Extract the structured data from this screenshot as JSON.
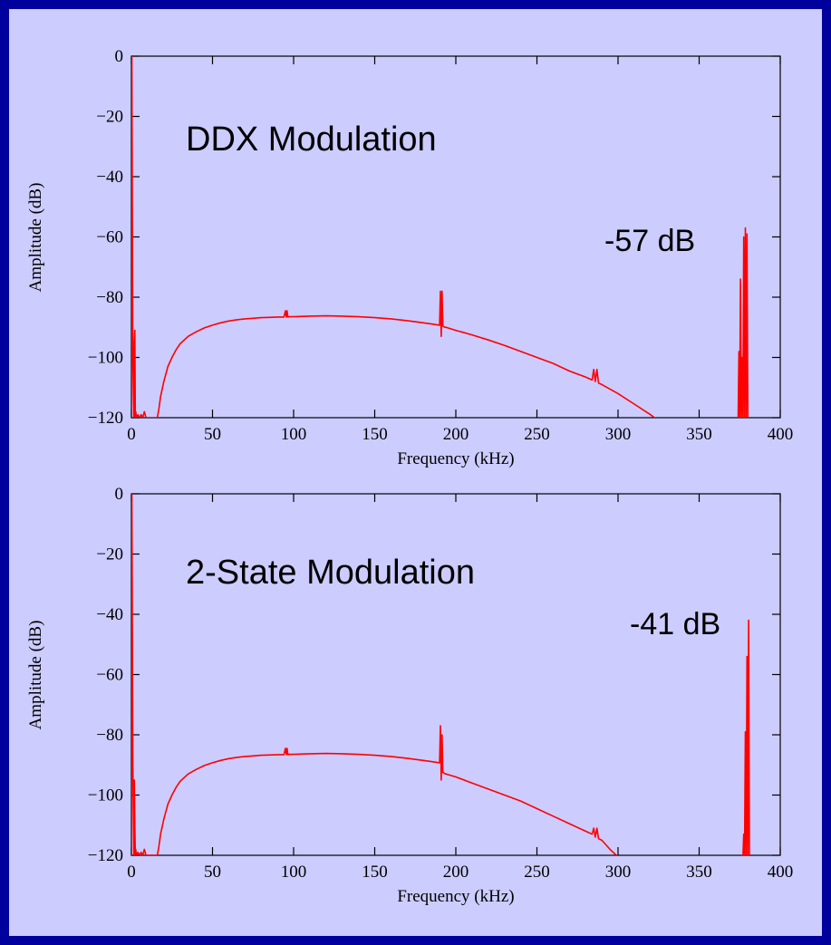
{
  "colors": {
    "outer_border": "#00009c",
    "background": "#ccccff",
    "trace": "#ff0000",
    "axes": "#000000"
  },
  "chart_data": [
    {
      "type": "line",
      "title": "DDX Modulation",
      "annotation": "-57 dB",
      "xlabel": "Frequency (kHz)",
      "ylabel": "Amplitude (dB)",
      "xlim": [
        0,
        400
      ],
      "ylim": [
        -120,
        0
      ],
      "xticks": [
        0,
        50,
        100,
        150,
        200,
        250,
        300,
        350,
        400
      ],
      "yticks": [
        0,
        -20,
        -40,
        -60,
        -80,
        -100,
        -120
      ],
      "xtick_labels": [
        "0",
        "50",
        "100",
        "150",
        "200",
        "250",
        "300",
        "350",
        "400"
      ],
      "ytick_labels": [
        "0",
        "−20",
        "−40",
        "−60",
        "−80",
        "−100",
        "−120"
      ],
      "grid": false,
      "series": [
        {
          "x": [
            0,
            0.3,
            0.6,
            0.9,
            1.2,
            1.5,
            1.8,
            2.1,
            2.4,
            2.7,
            3,
            4,
            5,
            6,
            7,
            8,
            9,
            10,
            11,
            12,
            13,
            14,
            15,
            16,
            17,
            18,
            20,
            22.5,
            25,
            27.5,
            30,
            35,
            40,
            45,
            50,
            55,
            60,
            65,
            70,
            75,
            80,
            85,
            90,
            94,
            95,
            95.5,
            96,
            96.5,
            97,
            98,
            100,
            110,
            120,
            130,
            140,
            150,
            160,
            170,
            180,
            185,
            190,
            190.5,
            191,
            191.5,
            192,
            192.5,
            193,
            193.5,
            194,
            195,
            200,
            210,
            220,
            230,
            240,
            250,
            260,
            270,
            280,
            284,
            285,
            286,
            287,
            288,
            290,
            300,
            310,
            320,
            325,
            374,
            374.5,
            375,
            375.5,
            376,
            376.5,
            377,
            377.5,
            378,
            378.5,
            379,
            379.5,
            380,
            380.5,
            381
          ],
          "y": [
            -120,
            0,
            -60,
            -100,
            -110,
            -120,
            -95,
            -91,
            -120,
            -118,
            -120,
            -119,
            -120,
            -119,
            -120,
            -118,
            -120,
            -120,
            -120,
            -120,
            -120,
            -120,
            -120,
            -120,
            -117,
            -113,
            -108,
            -103,
            -100,
            -97.5,
            -95.5,
            -93,
            -91.5,
            -90.2,
            -89.3,
            -88.5,
            -87.9,
            -87.5,
            -87.2,
            -87,
            -86.8,
            -86.7,
            -86.6,
            -86.6,
            -84.5,
            -86.6,
            -84.5,
            -86.6,
            -86.5,
            -86.5,
            -86.5,
            -86.3,
            -86.2,
            -86.3,
            -86.5,
            -86.8,
            -87.2,
            -87.8,
            -88.5,
            -88.9,
            -89.3,
            -78,
            -93,
            -78,
            -89.6,
            -89.8,
            -89.9,
            -90,
            -90,
            -90.2,
            -91,
            -92.5,
            -94.2,
            -96,
            -98,
            -100,
            -102,
            -104.5,
            -106.5,
            -107.5,
            -104,
            -108,
            -104,
            -108.5,
            -109,
            -112,
            -115.5,
            -119,
            -121,
            -121,
            -98,
            -120,
            -74,
            -120,
            -100,
            -120,
            -60,
            -120,
            -57,
            -120,
            -59,
            -120,
            -121,
            -121
          ]
        }
      ]
    },
    {
      "type": "line",
      "title": "2-State Modulation",
      "annotation": "-41 dB",
      "xlabel": "Frequency (kHz)",
      "ylabel": "Amplitude (dB)",
      "xlim": [
        0,
        400
      ],
      "ylim": [
        -120,
        0
      ],
      "xticks": [
        0,
        50,
        100,
        150,
        200,
        250,
        300,
        350,
        400
      ],
      "yticks": [
        0,
        -20,
        -40,
        -60,
        -80,
        -100,
        -120
      ],
      "xtick_labels": [
        "0",
        "50",
        "100",
        "150",
        "200",
        "250",
        "300",
        "350",
        "400"
      ],
      "ytick_labels": [
        "0",
        "−20",
        "−40",
        "−60",
        "−80",
        "−100",
        "−120"
      ],
      "grid": false,
      "series": [
        {
          "x": [
            0,
            0.3,
            0.6,
            0.9,
            1.2,
            1.5,
            1.8,
            2.1,
            2.4,
            2.7,
            3,
            4,
            5,
            6,
            7,
            8,
            9,
            10,
            11,
            12,
            13,
            14,
            15,
            16,
            17,
            18,
            20,
            22.5,
            25,
            27.5,
            30,
            35,
            40,
            45,
            50,
            55,
            60,
            65,
            70,
            75,
            80,
            85,
            90,
            94,
            95,
            95.5,
            96,
            96.5,
            97,
            98,
            100,
            110,
            120,
            130,
            140,
            150,
            160,
            170,
            180,
            185,
            190,
            190.5,
            191,
            191.5,
            192,
            192.5,
            193,
            193.5,
            194,
            195,
            200,
            210,
            220,
            230,
            240,
            250,
            260,
            270,
            280,
            284,
            285,
            286,
            287,
            288,
            290,
            295,
            300,
            302,
            377,
            377.5,
            378,
            378.5,
            379,
            379.5,
            380,
            380.5,
            381,
            381.5,
            382
          ],
          "y": [
            -120,
            0,
            -50,
            -90,
            -105,
            -120,
            -95,
            -110,
            -120,
            -118,
            -120,
            -119,
            -120,
            -119,
            -120,
            -118,
            -120,
            -120,
            -120,
            -120,
            -120,
            -120,
            -120,
            -120,
            -117,
            -113,
            -108,
            -103,
            -100,
            -97.5,
            -95.5,
            -93,
            -91.5,
            -90.2,
            -89.3,
            -88.5,
            -87.9,
            -87.5,
            -87.2,
            -87,
            -86.8,
            -86.7,
            -86.6,
            -86.6,
            -84.5,
            -86.6,
            -84.5,
            -86.6,
            -86.5,
            -86.5,
            -86.5,
            -86.3,
            -86.2,
            -86.3,
            -86.5,
            -86.8,
            -87.2,
            -87.8,
            -88.5,
            -88.9,
            -89.3,
            -77,
            -95,
            -80,
            -92.5,
            -92.6,
            -92.8,
            -93,
            -93,
            -93.2,
            -94,
            -96,
            -98,
            -100,
            -102,
            -104.5,
            -107,
            -109.5,
            -112,
            -113,
            -111,
            -114,
            -111,
            -114.5,
            -115,
            -118,
            -120.5,
            -121,
            -121,
            -113,
            -120,
            -79,
            -120,
            -54,
            -120,
            -42,
            -120,
            -121,
            -121
          ]
        }
      ]
    }
  ]
}
